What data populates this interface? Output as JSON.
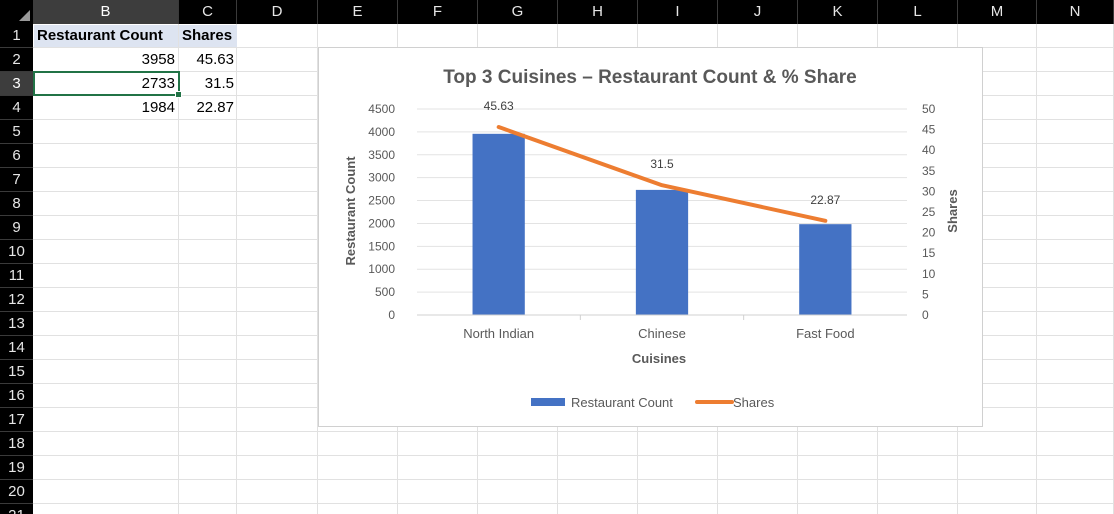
{
  "sheet": {
    "columns": [
      "B",
      "C",
      "D",
      "E",
      "F",
      "G",
      "H",
      "I",
      "J",
      "K",
      "L",
      "M",
      "N"
    ],
    "selected_column": "B",
    "rows": [
      "1",
      "2",
      "3",
      "4",
      "5",
      "6",
      "7",
      "8",
      "9",
      "10",
      "11",
      "12",
      "13",
      "14",
      "15",
      "16",
      "17",
      "18",
      "19",
      "20",
      "21"
    ],
    "selected_row": "3",
    "header_row": {
      "b": "Restaurant Count",
      "c": "Shares"
    },
    "data_rows": [
      {
        "b": "3958",
        "c": "45.63"
      },
      {
        "b": "2733",
        "c": "31.5"
      },
      {
        "b": "1984",
        "c": "22.87"
      }
    ],
    "active_cell": "B3"
  },
  "chart_data": {
    "type": "bar",
    "title": "Top 3 Cuisines – Restaurant Count & % Share",
    "xlabel": "Cuisines",
    "ylabel": "Restaurant Count",
    "y2label": "Shares",
    "categories": [
      "North Indian",
      "Chinese",
      "Fast Food"
    ],
    "ylim": [
      0,
      4500
    ],
    "y_ticks": [
      "0",
      "500",
      "1000",
      "1500",
      "2000",
      "2500",
      "3000",
      "3500",
      "4000",
      "4500"
    ],
    "y2lim": [
      0,
      50
    ],
    "y2_ticks": [
      "0",
      "5",
      "10",
      "15",
      "20",
      "25",
      "30",
      "35",
      "40",
      "45",
      "50"
    ],
    "grid": true,
    "legend_position": "bottom",
    "series": [
      {
        "name": "Restaurant Count",
        "type": "bar",
        "axis": "left",
        "color": "#4472c4",
        "values": [
          3958,
          2733,
          1984
        ]
      },
      {
        "name": "Shares",
        "type": "line",
        "axis": "right",
        "color": "#ed7d31",
        "values": [
          45.63,
          31.5,
          22.87
        ],
        "data_labels": [
          "45.63",
          "31.5",
          "22.87"
        ]
      }
    ]
  }
}
